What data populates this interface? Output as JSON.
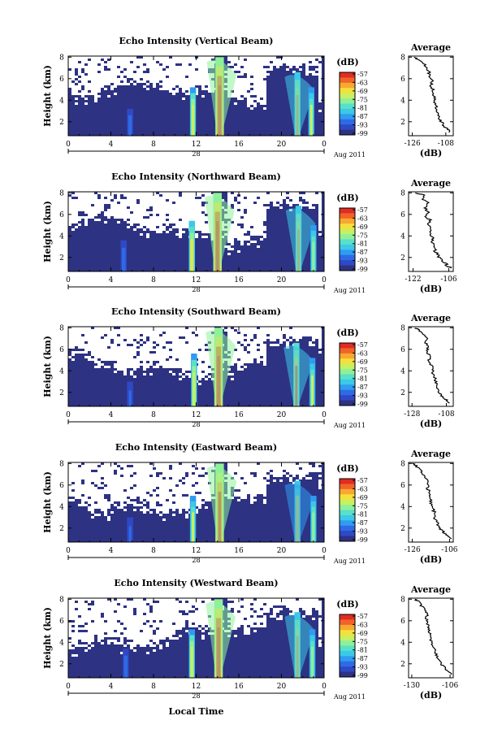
{
  "figure": {
    "date_label": "Aug 2011",
    "date_day": "28",
    "xlabel": "Local Time",
    "avg_xlabel": "(dB)",
    "cb_unit": "(dB)",
    "cb_ticks": [
      "-57",
      "-63",
      "-69",
      "-75",
      "-81",
      "-87",
      "-93",
      "-99"
    ]
  },
  "chart_data": [
    {
      "type": "heatmap",
      "title": "Echo Intensity (Vertical Beam)",
      "ylabel": "Height (km)",
      "x_ticks": [
        "0",
        "4",
        "8",
        "12",
        "16",
        "20",
        "0"
      ],
      "y_ticks": [
        "2",
        "4",
        "6",
        "8"
      ],
      "xlim": [
        0,
        24
      ],
      "ylim": [
        0.7,
        8.1
      ],
      "clim": [
        -99,
        -57
      ],
      "colorbar_ticks": [
        -57,
        -63,
        -69,
        -75,
        -81,
        -87,
        -93,
        -99
      ],
      "features": [
        {
          "kind": "echo_column",
          "time": 5.8,
          "height_top": 3.2,
          "peak_db": -90
        },
        {
          "kind": "echo_column",
          "time": 11.7,
          "height_top": 5.2,
          "peak_db": -72
        },
        {
          "kind": "echo_column",
          "time": 14.2,
          "height_top": 8.0,
          "peak_db": -57
        },
        {
          "kind": "echo_column",
          "time": 21.5,
          "height_top": 6.6,
          "peak_db": -66
        },
        {
          "kind": "echo_column",
          "time": 22.8,
          "height_top": 5.2,
          "peak_db": -74
        }
      ]
    },
    {
      "type": "line",
      "title": "Average",
      "xlabel": "(dB)",
      "x_ticks": [
        "-126",
        "-108"
      ],
      "y_ticks": [
        "2",
        "4",
        "6",
        "8"
      ],
      "xlim": [
        -128,
        -104
      ],
      "ylim": [
        0.7,
        8.1
      ],
      "points": [
        [
          -106,
          1.0
        ],
        [
          -107,
          1.3
        ],
        [
          -109,
          1.6
        ],
        [
          -110,
          1.9
        ],
        [
          -111,
          2.2
        ],
        [
          -112,
          2.6
        ],
        [
          -113,
          3.0
        ],
        [
          -113,
          3.4
        ],
        [
          -114,
          3.8
        ],
        [
          -114,
          4.2
        ],
        [
          -115,
          4.6
        ],
        [
          -115,
          5.0
        ],
        [
          -116,
          5.4
        ],
        [
          -115,
          5.8
        ],
        [
          -117,
          6.2
        ],
        [
          -117,
          6.6
        ],
        [
          -118,
          7.0
        ],
        [
          -120,
          7.4
        ],
        [
          -123,
          7.8
        ],
        [
          -125,
          8.0
        ]
      ]
    },
    {
      "type": "heatmap",
      "title": "Echo Intensity (Northward Beam)",
      "ylabel": "Height (km)",
      "x_ticks": [
        "0",
        "4",
        "8",
        "12",
        "16",
        "20",
        "0"
      ],
      "y_ticks": [
        "2",
        "4",
        "6",
        "8"
      ],
      "xlim": [
        0,
        24
      ],
      "ylim": [
        0.7,
        8.1
      ],
      "clim": [
        -99,
        -57
      ],
      "colorbar_ticks": [
        -57,
        -63,
        -69,
        -75,
        -81,
        -87,
        -93,
        -99
      ],
      "features": [
        {
          "kind": "echo_column",
          "time": 5.2,
          "height_top": 3.6,
          "peak_db": -90
        },
        {
          "kind": "echo_column",
          "time": 11.6,
          "height_top": 5.4,
          "peak_db": -70
        },
        {
          "kind": "echo_column",
          "time": 14.0,
          "height_top": 8.0,
          "peak_db": -57
        },
        {
          "kind": "echo_column",
          "time": 21.6,
          "height_top": 6.8,
          "peak_db": -66
        },
        {
          "kind": "echo_column",
          "time": 23.0,
          "height_top": 5.0,
          "peak_db": -76
        }
      ]
    },
    {
      "type": "line",
      "title": "Average",
      "xlabel": "(dB)",
      "x_ticks": [
        "-122",
        "-106"
      ],
      "y_ticks": [
        "2",
        "4",
        "6",
        "8"
      ],
      "xlim": [
        -124,
        -104
      ],
      "ylim": [
        0.7,
        8.1
      ],
      "points": [
        [
          -105,
          1.0
        ],
        [
          -107,
          1.3
        ],
        [
          -108,
          1.6
        ],
        [
          -110,
          1.9
        ],
        [
          -111,
          2.2
        ],
        [
          -112,
          2.6
        ],
        [
          -112,
          3.0
        ],
        [
          -113,
          3.4
        ],
        [
          -113,
          3.8
        ],
        [
          -114,
          4.2
        ],
        [
          -114,
          4.6
        ],
        [
          -115,
          5.0
        ],
        [
          -114,
          5.4
        ],
        [
          -116,
          5.8
        ],
        [
          -115,
          6.2
        ],
        [
          -117,
          6.6
        ],
        [
          -115,
          7.0
        ],
        [
          -118,
          7.4
        ],
        [
          -117,
          7.8
        ],
        [
          -121,
          8.0
        ]
      ]
    },
    {
      "type": "heatmap",
      "title": "Echo Intensity (Southward Beam)",
      "ylabel": "Height (km)",
      "x_ticks": [
        "0",
        "4",
        "8",
        "12",
        "16",
        "20",
        "0"
      ],
      "y_ticks": [
        "2",
        "4",
        "6",
        "8"
      ],
      "xlim": [
        0,
        24
      ],
      "ylim": [
        0.7,
        8.1
      ],
      "clim": [
        -99,
        -57
      ],
      "colorbar_ticks": [
        -57,
        -63,
        -69,
        -75,
        -81,
        -87,
        -93,
        -99
      ],
      "features": [
        {
          "kind": "echo_column",
          "time": 5.8,
          "height_top": 3.0,
          "peak_db": -92
        },
        {
          "kind": "echo_column",
          "time": 11.8,
          "height_top": 5.6,
          "peak_db": -72
        },
        {
          "kind": "echo_column",
          "time": 14.1,
          "height_top": 8.0,
          "peak_db": -57
        },
        {
          "kind": "echo_column",
          "time": 21.4,
          "height_top": 6.6,
          "peak_db": -64
        },
        {
          "kind": "echo_column",
          "time": 22.9,
          "height_top": 5.2,
          "peak_db": -74
        }
      ]
    },
    {
      "type": "line",
      "title": "Average",
      "xlabel": "(dB)",
      "x_ticks": [
        "-128",
        "-108"
      ],
      "y_ticks": [
        "2",
        "4",
        "6",
        "8"
      ],
      "xlim": [
        -130,
        -104
      ],
      "ylim": [
        0.7,
        8.1
      ],
      "points": [
        [
          -106,
          1.0
        ],
        [
          -108,
          1.3
        ],
        [
          -110,
          1.6
        ],
        [
          -112,
          1.9
        ],
        [
          -113,
          2.2
        ],
        [
          -114,
          2.6
        ],
        [
          -114,
          3.0
        ],
        [
          -115,
          3.4
        ],
        [
          -116,
          3.8
        ],
        [
          -116,
          4.2
        ],
        [
          -117,
          4.6
        ],
        [
          -118,
          5.0
        ],
        [
          -118,
          5.4
        ],
        [
          -119,
          5.8
        ],
        [
          -119,
          6.2
        ],
        [
          -120,
          6.6
        ],
        [
          -119,
          7.0
        ],
        [
          -122,
          7.4
        ],
        [
          -124,
          7.8
        ],
        [
          -126,
          8.0
        ]
      ]
    },
    {
      "type": "heatmap",
      "title": "Echo Intensity (Eastward Beam)",
      "ylabel": "Height (km)",
      "x_ticks": [
        "0",
        "4",
        "8",
        "12",
        "16",
        "20",
        "0"
      ],
      "y_ticks": [
        "2",
        "4",
        "6",
        "8"
      ],
      "xlim": [
        0,
        24
      ],
      "ylim": [
        0.7,
        8.1
      ],
      "clim": [
        -99,
        -57
      ],
      "colorbar_ticks": [
        -57,
        -63,
        -69,
        -75,
        -81,
        -87,
        -93,
        -99
      ],
      "features": [
        {
          "kind": "echo_column",
          "time": 5.8,
          "height_top": 3.0,
          "peak_db": -92
        },
        {
          "kind": "echo_column",
          "time": 11.7,
          "height_top": 5.0,
          "peak_db": -74
        },
        {
          "kind": "echo_column",
          "time": 14.2,
          "height_top": 8.0,
          "peak_db": -58
        },
        {
          "kind": "echo_column",
          "time": 21.5,
          "height_top": 6.4,
          "peak_db": -68
        },
        {
          "kind": "echo_column",
          "time": 23.0,
          "height_top": 5.0,
          "peak_db": -78
        }
      ]
    },
    {
      "type": "line",
      "title": "Average",
      "xlabel": "(dB)",
      "x_ticks": [
        "-126",
        "-106"
      ],
      "y_ticks": [
        "2",
        "4",
        "6",
        "8"
      ],
      "xlim": [
        -128,
        -104
      ],
      "ylim": [
        0.7,
        8.1
      ],
      "points": [
        [
          -105,
          1.0
        ],
        [
          -107,
          1.3
        ],
        [
          -109,
          1.6
        ],
        [
          -111,
          1.9
        ],
        [
          -112,
          2.2
        ],
        [
          -113,
          2.6
        ],
        [
          -114,
          3.0
        ],
        [
          -114,
          3.4
        ],
        [
          -115,
          3.8
        ],
        [
          -116,
          4.2
        ],
        [
          -116,
          4.6
        ],
        [
          -117,
          5.0
        ],
        [
          -117,
          5.4
        ],
        [
          -118,
          5.8
        ],
        [
          -117,
          6.2
        ],
        [
          -119,
          6.6
        ],
        [
          -120,
          7.0
        ],
        [
          -122,
          7.4
        ],
        [
          -124,
          7.8
        ],
        [
          -126,
          8.0
        ]
      ]
    },
    {
      "type": "heatmap",
      "title": "Echo Intensity (Westward Beam)",
      "ylabel": "Height (km)",
      "x_ticks": [
        "0",
        "4",
        "8",
        "12",
        "16",
        "20",
        "0"
      ],
      "y_ticks": [
        "2",
        "4",
        "6",
        "8"
      ],
      "xlim": [
        0,
        24
      ],
      "ylim": [
        0.7,
        8.1
      ],
      "clim": [
        -99,
        -57
      ],
      "colorbar_ticks": [
        -57,
        -63,
        -69,
        -75,
        -81,
        -87,
        -93,
        -99
      ],
      "features": [
        {
          "kind": "echo_column",
          "time": 5.4,
          "height_top": 3.4,
          "peak_db": -90
        },
        {
          "kind": "echo_column",
          "time": 11.6,
          "height_top": 5.2,
          "peak_db": -72
        },
        {
          "kind": "echo_column",
          "time": 14.1,
          "height_top": 8.0,
          "peak_db": -57
        },
        {
          "kind": "echo_column",
          "time": 21.5,
          "height_top": 6.8,
          "peak_db": -66
        },
        {
          "kind": "echo_column",
          "time": 22.9,
          "height_top": 5.2,
          "peak_db": -76
        }
      ]
    },
    {
      "type": "line",
      "title": "Average",
      "xlabel": "(dB)",
      "x_ticks": [
        "-130",
        "-106"
      ],
      "y_ticks": [
        "2",
        "4",
        "6",
        "8"
      ],
      "xlim": [
        -132,
        -104
      ],
      "ylim": [
        0.7,
        8.1
      ],
      "points": [
        [
          -105,
          1.0
        ],
        [
          -107,
          1.3
        ],
        [
          -109,
          1.6
        ],
        [
          -111,
          1.9
        ],
        [
          -112,
          2.2
        ],
        [
          -114,
          2.6
        ],
        [
          -115,
          3.0
        ],
        [
          -116,
          3.4
        ],
        [
          -117,
          3.8
        ],
        [
          -118,
          4.2
        ],
        [
          -118,
          4.6
        ],
        [
          -119,
          5.0
        ],
        [
          -120,
          5.4
        ],
        [
          -120,
          5.8
        ],
        [
          -121,
          6.2
        ],
        [
          -120,
          6.6
        ],
        [
          -122,
          7.0
        ],
        [
          -124,
          7.4
        ],
        [
          -126,
          7.8
        ],
        [
          -128,
          8.0
        ]
      ]
    }
  ],
  "colors": {
    "background": "#2d3283",
    "colorscale": [
      "#2d3283",
      "#2f49c4",
      "#2f6ae6",
      "#2f9cf0",
      "#3cc8e8",
      "#58e0c8",
      "#8ff09a",
      "#c8f060",
      "#f4e03c",
      "#f8a830",
      "#f06428",
      "#e02c24"
    ]
  }
}
